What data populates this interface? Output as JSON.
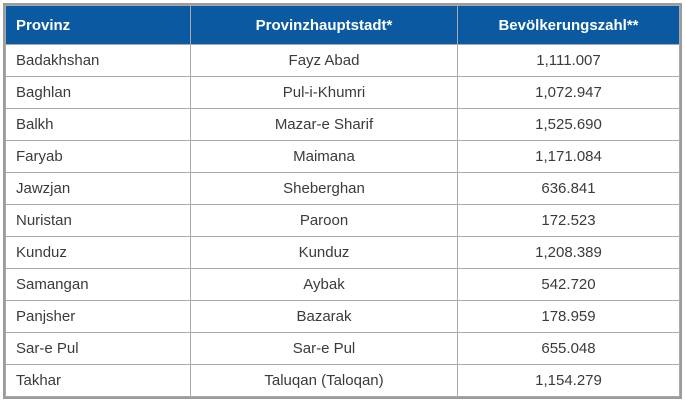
{
  "chart_data": {
    "type": "table",
    "columns": [
      "Provinz",
      "Provinzhauptstadt*",
      "Bevölkerungszahl**"
    ],
    "rows": [
      [
        "Badakhshan",
        "Fayz Abad",
        "1,111.007"
      ],
      [
        "Baghlan",
        "Pul-i-Khumri",
        "1,072.947"
      ],
      [
        "Balkh",
        "Mazar-e Sharif",
        "1,525.690"
      ],
      [
        "Faryab",
        "Maimana",
        "1,171.084"
      ],
      [
        "Jawzjan",
        "Sheberghan",
        "636.841"
      ],
      [
        "Nuristan",
        "Paroon",
        "172.523"
      ],
      [
        "Kunduz",
        "Kunduz",
        "1,208.389"
      ],
      [
        "Samangan",
        "Aybak",
        "542.720"
      ],
      [
        "Panjsher",
        "Bazarak",
        "178.959"
      ],
      [
        "Sar-e Pul",
        "Sar-e Pul",
        "655.048"
      ],
      [
        "Takhar",
        "Taluqan (Taloqan)",
        "1,154.279"
      ]
    ]
  },
  "colors": {
    "header_bg": "#0b5aa1",
    "header_text": "#ffffff",
    "grid_border": "#a9a9a9",
    "outer_border": "#9b9b9b",
    "body_text": "#3b3b3b"
  }
}
